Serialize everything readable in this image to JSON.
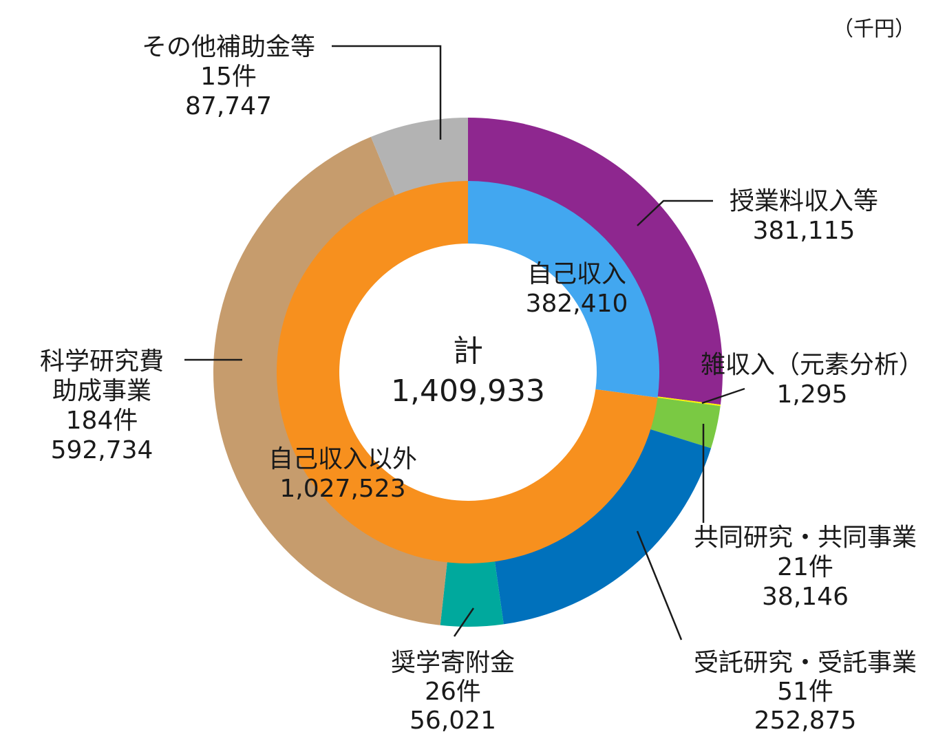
{
  "unit": "（千円）",
  "chart_data": {
    "type": "pie",
    "unit": "（千円）",
    "total": {
      "label": "計",
      "value": "1,409,933"
    },
    "inner": [
      {
        "name": "自己収入",
        "value": 382410,
        "value_text": "382,410",
        "color": "#42A7F0"
      },
      {
        "name": "自己収入以外",
        "value": 1027523,
        "value_text": "1,027,523",
        "color": "#F7901E"
      }
    ],
    "outer": [
      {
        "name": "授業料収入等",
        "count": "",
        "value": 381115,
        "value_text": "381,115",
        "color": "#8E278F"
      },
      {
        "name": "雑収入（元素分析）",
        "count": "",
        "value": 1295,
        "value_text": "1,295",
        "color": "#FFF200"
      },
      {
        "name": "共同研究・共同事業",
        "count": "21件",
        "value": 38146,
        "value_text": "38,146",
        "color": "#7AC943"
      },
      {
        "name": "受託研究・受託事業",
        "count": "51件",
        "value": 252875,
        "value_text": "252,875",
        "color": "#0071BC"
      },
      {
        "name": "奨学寄附金",
        "count": "26件",
        "value": 56021,
        "value_text": "56,021",
        "color": "#00A99D"
      },
      {
        "name": "科学研究費助成事業",
        "name_lines": [
          "科学研究費",
          "助成事業"
        ],
        "count": "184件",
        "value": 592734,
        "value_text": "592,734",
        "color": "#C69C6D"
      },
      {
        "name": "その他補助金等",
        "count": "15件",
        "value": 87747,
        "value_text": "87,747",
        "color": "#B3B3B3"
      }
    ]
  }
}
